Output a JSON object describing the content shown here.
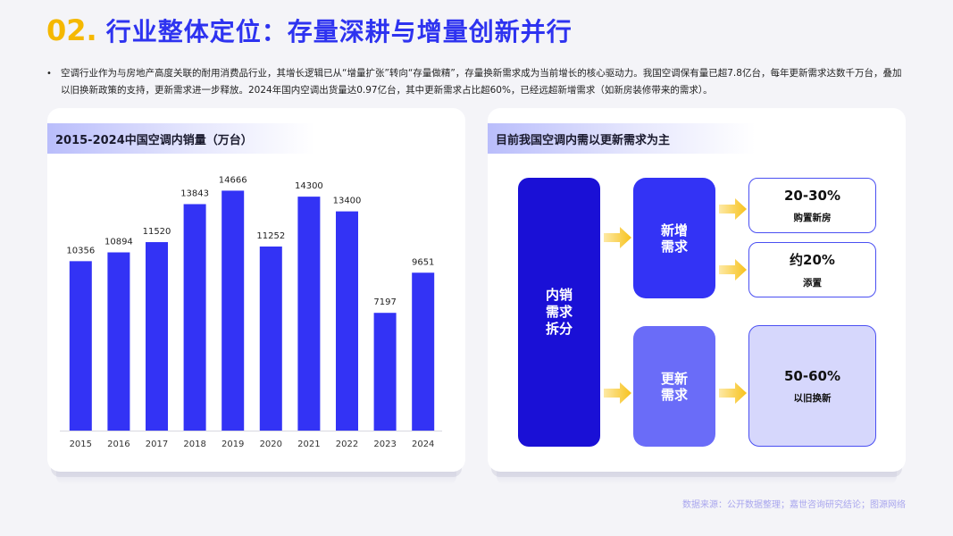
{
  "title": {
    "number": "02.",
    "text": "行业整体定位：存量深耕与增量创新并行"
  },
  "bullet": "空调行业作为与房地产高度关联的耐用消费品行业，其增长逻辑已从“增量扩张”转向“存量做精”，存量换新需求成为当前增长的核心驱动力。我国空调保有量已超7.8亿台，每年更新需求达数千万台，叠加以旧换新政策的支持，更新需求进一步释放。2024年国内空调出货量达0.97亿台，其中更新需求占比超60%，已经远超新增需求（如新房装修带来的需求）。",
  "left_card": {
    "title": "2015-2024中国空调内销量（万台）"
  },
  "right_card": {
    "title": "目前我国空调内需以更新需求为主",
    "main_box": [
      "内销",
      "需求",
      "拆分"
    ],
    "new_box": [
      "新增",
      "需求"
    ],
    "update_box": [
      "更新",
      "需求"
    ],
    "outcome_1": {
      "value": "20-30%",
      "label": "购置新房"
    },
    "outcome_2": {
      "value": "约20%",
      "label": "添置"
    },
    "outcome_3": {
      "value": "50-60%",
      "label": "以旧换新"
    }
  },
  "source": "数据来源：公开数据整理；嘉世咨询研究结论；图源网络",
  "colors": {
    "bar": "#3333f5",
    "accent": "#2e33f0",
    "number": "#f5b800",
    "arrow": "#f7c21c"
  },
  "chart_data": {
    "type": "bar",
    "title": "2015-2024中国空调内销量（万台）",
    "categories": [
      "2015",
      "2016",
      "2017",
      "2018",
      "2019",
      "2020",
      "2021",
      "2022",
      "2023",
      "2024"
    ],
    "values": [
      10356,
      10894,
      11520,
      13843,
      14666,
      11252,
      14300,
      13400,
      7197,
      9651
    ],
    "ylim": [
      0,
      16000
    ],
    "grid": false
  }
}
